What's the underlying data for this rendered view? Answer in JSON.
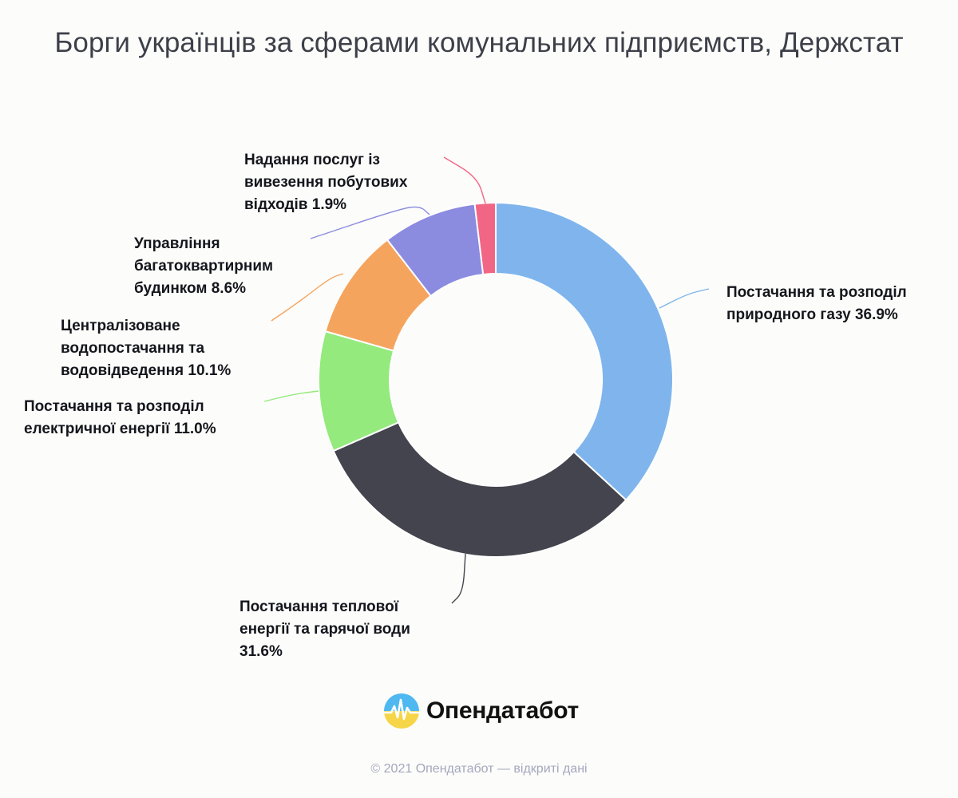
{
  "title": "Борги українців за сферами комунальних підприємств, Держстат",
  "chart_data": {
    "type": "pie",
    "variant": "donut",
    "slices": [
      {
        "label_lines": [
          "Постачання та розподіл",
          "природного газу 36.9%"
        ],
        "value": 36.9,
        "color": "#7fb5ec"
      },
      {
        "label_lines": [
          "Постачання теплової",
          "енергії та гарячої води",
          "31.6%"
        ],
        "value": 31.6,
        "color": "#44444e"
      },
      {
        "label_lines": [
          "Постачання та розподіл",
          "електричної енергії 11.0%"
        ],
        "value": 11.0,
        "color": "#94ea7c"
      },
      {
        "label_lines": [
          "Централізоване",
          "водопостачання та",
          "водовідведення 10.1%"
        ],
        "value": 10.1,
        "color": "#f5a45e"
      },
      {
        "label_lines": [
          "Управління",
          "багатоквартирним",
          "будинком 8.6%"
        ],
        "value": 8.6,
        "color": "#8b8be0"
      },
      {
        "label_lines": [
          "Надання послуг із",
          "вивезення побутових",
          "відходів 1.9%"
        ],
        "value": 1.9,
        "color": "#f26685"
      }
    ]
  },
  "brand": {
    "name": "Опендатабот",
    "logo_icon": "opendatabot-logo-icon"
  },
  "footer": "© 2021 Опендатабот — відкриті дані"
}
